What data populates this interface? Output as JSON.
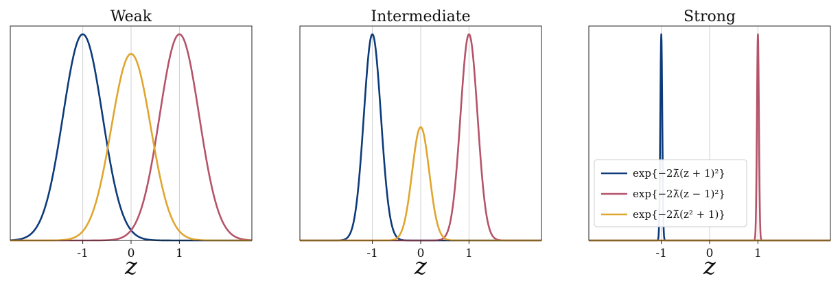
{
  "chart_data": [
    {
      "type": "line",
      "title": "Weak",
      "xlabel": "z",
      "xlim": [
        -2.5,
        2.5
      ],
      "ylim": [
        0,
        1.04
      ],
      "xticks": [
        -1,
        0,
        1
      ],
      "xtick_labels": [
        "-1",
        "0",
        "1"
      ],
      "lambda": 1.5,
      "mid_peak": 0.905,
      "grid": true,
      "series": [
        {
          "role": "left",
          "color": "#0d3b7a",
          "center": -1,
          "peak": 1.0
        },
        {
          "role": "right",
          "color": "#b5536b",
          "center": 1,
          "peak": 1.0
        },
        {
          "role": "middle",
          "color": "#e0a52e",
          "center": 0,
          "peak": 0.905
        }
      ]
    },
    {
      "type": "line",
      "title": "Intermediate",
      "xlabel": "z",
      "xlim": [
        -2.5,
        2.5
      ],
      "ylim": [
        0,
        1.04
      ],
      "xticks": [
        -1,
        0,
        1
      ],
      "xtick_labels": [
        "-1",
        "0",
        "1"
      ],
      "lambda": 8,
      "mid_peak": 0.55,
      "grid": true,
      "series": [
        {
          "role": "left",
          "color": "#0d3b7a",
          "center": -1,
          "peak": 1.0
        },
        {
          "role": "right",
          "color": "#b5536b",
          "center": 1,
          "peak": 1.0
        },
        {
          "role": "middle",
          "color": "#e0a52e",
          "center": 0,
          "peak": 0.55
        }
      ]
    },
    {
      "type": "line",
      "title": "Strong",
      "xlabel": "z",
      "xlim": [
        -2.5,
        2.5
      ],
      "ylim": [
        0,
        1.04
      ],
      "xticks": [
        -1,
        0,
        1
      ],
      "xtick_labels": [
        "-1",
        "0",
        "1"
      ],
      "lambda": 600,
      "mid_peak": 0.0,
      "grid": true,
      "legend": "lower-left",
      "series": [
        {
          "role": "left",
          "color": "#0d3b7a",
          "center": -1,
          "peak": 1.0
        },
        {
          "role": "right",
          "color": "#b5536b",
          "center": 1,
          "peak": 1.0
        },
        {
          "role": "middle",
          "color": "#e0a52e",
          "center": 0,
          "peak": 0.0
        }
      ]
    }
  ],
  "legend": {
    "entries": [
      {
        "label": "exp{−2λ̄(z + 1)²}",
        "color": "#0d3b7a"
      },
      {
        "label": "exp{−2λ̄(z − 1)²}",
        "color": "#b5536b"
      },
      {
        "label": "exp{−2λ̄(z² + 1)}",
        "color": "#e0a52e"
      }
    ]
  }
}
